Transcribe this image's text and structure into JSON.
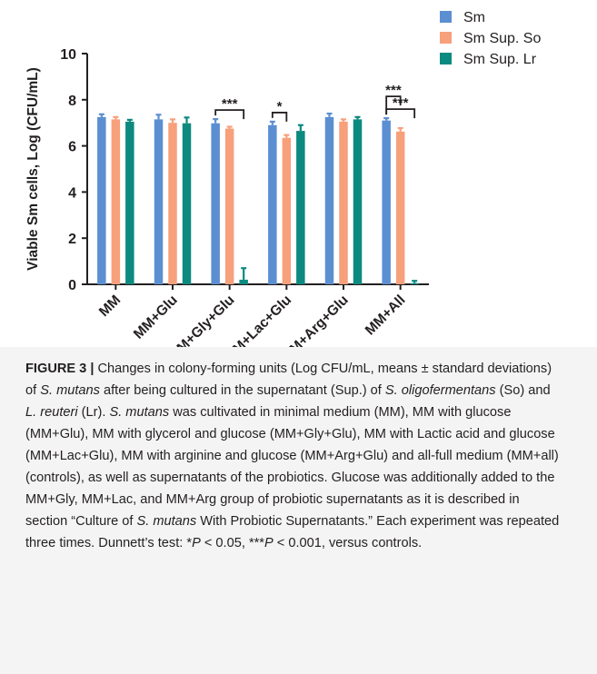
{
  "figure": {
    "caption_label": "FIGURE 3 |",
    "caption_segments": [
      {
        "text": " Changes in colony-forming units (Log CFU/mL, means ± standard deviations) of ",
        "style": "normal"
      },
      {
        "text": "S. mutans",
        "style": "italic"
      },
      {
        "text": " after being cultured in the supernatant (Sup.) of ",
        "style": "normal"
      },
      {
        "text": "S. oligofermentans",
        "style": "italic"
      },
      {
        "text": " (So) and ",
        "style": "normal"
      },
      {
        "text": "L. reuteri",
        "style": "italic"
      },
      {
        "text": " (Lr). ",
        "style": "normal"
      },
      {
        "text": "S. mutans",
        "style": "italic"
      },
      {
        "text": " was cultivated in minimal medium (MM), MM with glucose (MM+Glu), MM with glycerol and glucose (MM+Gly+Glu), MM with Lactic acid and glucose (MM+Lac+Glu), MM with arginine and glucose (MM+Arg+Glu) and all-full medium (MM+all) (controls), as well as supernatants of the probiotics. Glucose was additionally added to the MM+Gly, MM+Lac, and MM+Arg group of probiotic supernatants as it is described in section “Culture of ",
        "style": "normal"
      },
      {
        "text": "S. mutans",
        "style": "italic"
      },
      {
        "text": " With Probiotic Supernatants.” Each experiment was repeated three times. Dunnett’s test: *",
        "style": "normal"
      },
      {
        "text": "P",
        "style": "italic"
      },
      {
        "text": " < 0.05, ***",
        "style": "normal"
      },
      {
        "text": "P",
        "style": "italic"
      },
      {
        "text": " < 0.001, versus controls.",
        "style": "normal"
      }
    ]
  },
  "chart_data": {
    "type": "bar",
    "categories": [
      "MM",
      "MM+Glu",
      "MM+Gly+Glu",
      "MM+Lac+Glu",
      "MM+Arg+Glu",
      "MM+All"
    ],
    "series": [
      {
        "name": "Sm",
        "color": "#5b8fd1",
        "values": [
          7.25,
          7.15,
          6.98,
          6.9,
          7.25,
          7.1
        ],
        "errors": [
          0.12,
          0.2,
          0.18,
          0.15,
          0.15,
          0.1
        ]
      },
      {
        "name": "Sm Sup. So",
        "color": "#f7a07c",
        "values": [
          7.15,
          7.0,
          6.75,
          6.35,
          7.05,
          6.62
        ],
        "errors": [
          0.1,
          0.15,
          0.08,
          0.12,
          0.1,
          0.15
        ]
      },
      {
        "name": "Sm Sup. Lr",
        "color": "#0d8a80",
        "values": [
          7.05,
          6.98,
          0.2,
          6.65,
          7.15,
          0.05
        ],
        "errors": [
          0.08,
          0.25,
          0.5,
          0.25,
          0.1,
          0.1
        ]
      }
    ],
    "ylabel": "Viable Sm cells, Log (CFU/mL)",
    "xlabel": "",
    "ylim": [
      0,
      10
    ],
    "yticks": [
      0,
      2,
      4,
      6,
      8,
      10
    ],
    "grid": false,
    "legend_position": "top-right",
    "annotations": [
      {
        "label": "***",
        "category": 2,
        "from_series": 0,
        "to_series": 2
      },
      {
        "label": "*",
        "category": 3,
        "from_series": 0,
        "to_series": 1
      },
      {
        "label": "***",
        "category": 5,
        "from_series": 0,
        "to_series": 2
      },
      {
        "label": "***",
        "category": 5,
        "from_series": 0,
        "to_series": 1
      }
    ]
  }
}
